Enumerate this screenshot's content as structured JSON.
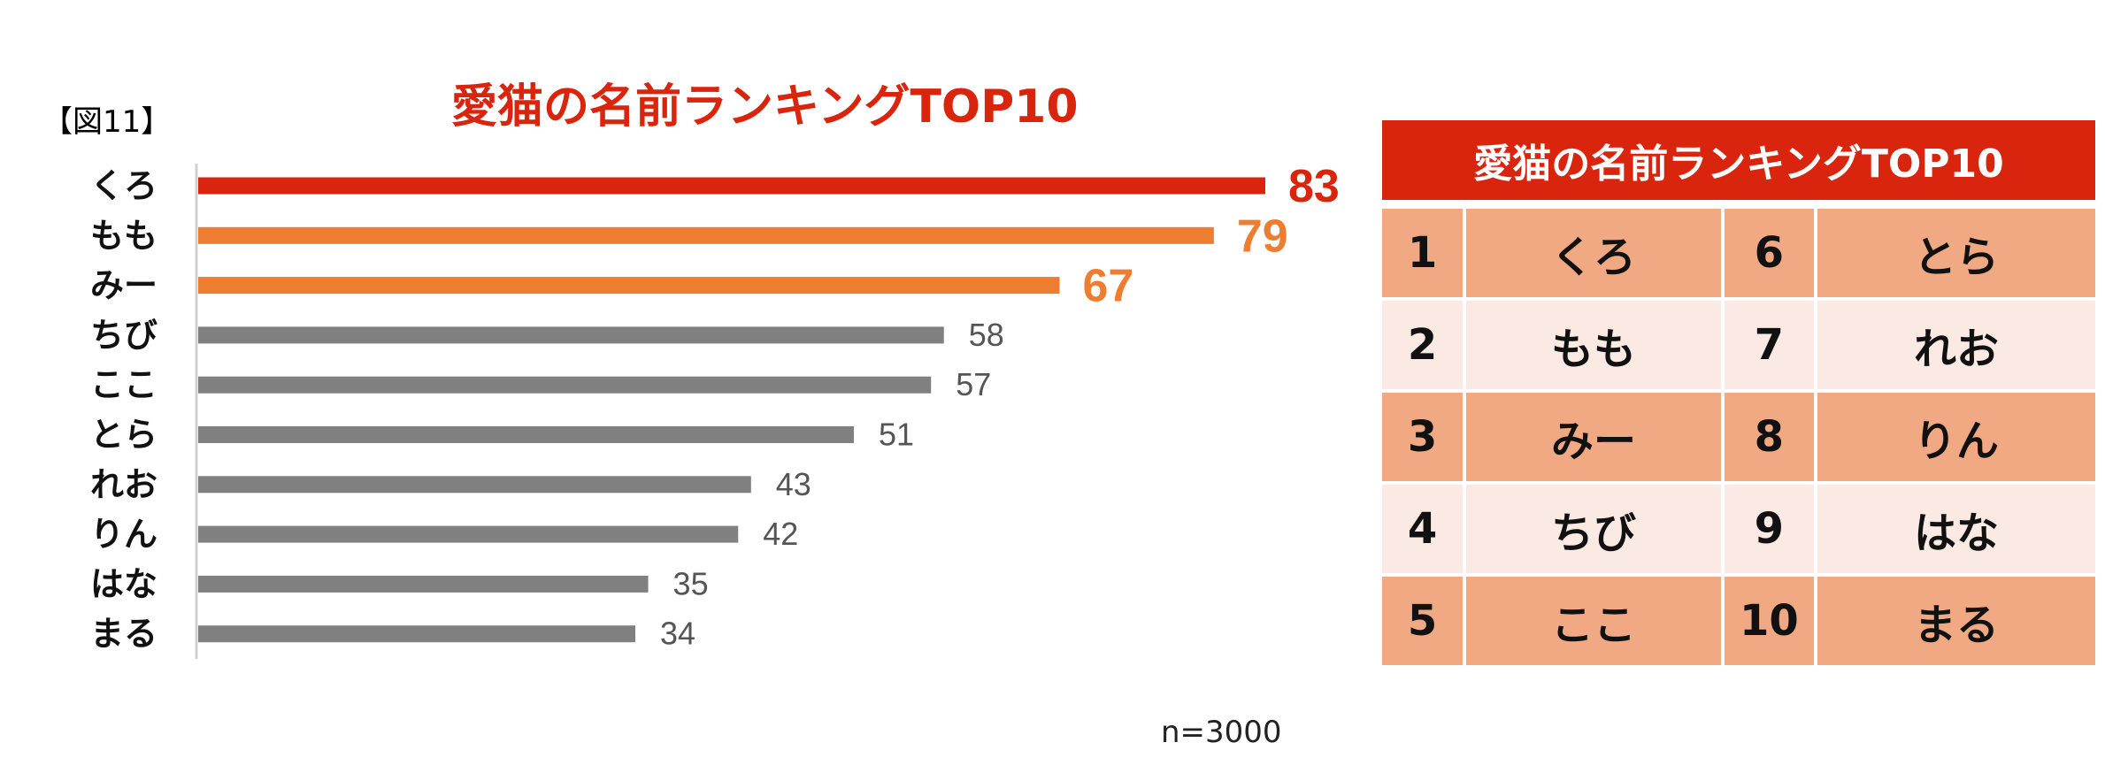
{
  "figure_label": "【図11】",
  "note": "n=3000",
  "colors": {
    "accent_red": "#d9250d",
    "orange": "#ed7d31",
    "gray": "#808080",
    "table_dark": "#f0a983",
    "table_light": "#fbe9e3"
  },
  "chart_data": {
    "type": "bar",
    "orientation": "horizontal",
    "title": "愛猫の名前ランキングTOP10",
    "categories": [
      "くろ",
      "もも",
      "みー",
      "ちび",
      "ここ",
      "とら",
      "れお",
      "りん",
      "はな",
      "まる"
    ],
    "values": [
      83,
      79,
      67,
      58,
      57,
      51,
      43,
      42,
      35,
      34
    ],
    "bar_colors": [
      "#d9250d",
      "#ed7d31",
      "#ed7d31",
      "#808080",
      "#808080",
      "#808080",
      "#808080",
      "#808080",
      "#808080",
      "#808080"
    ],
    "xlim": [
      0,
      83
    ],
    "grid": false,
    "data_labels": true
  },
  "table": {
    "title": "愛猫の名前ランキングTOP10",
    "rows": [
      {
        "rank1": "1",
        "name1": "くろ",
        "rank2": "6",
        "name2": "とら"
      },
      {
        "rank1": "2",
        "name1": "もも",
        "rank2": "7",
        "name2": "れお"
      },
      {
        "rank1": "3",
        "name1": "みー",
        "rank2": "8",
        "name2": "りん"
      },
      {
        "rank1": "4",
        "name1": "ちび",
        "rank2": "9",
        "name2": "はな"
      },
      {
        "rank1": "5",
        "name1": "ここ",
        "rank2": "10",
        "name2": "まる"
      }
    ]
  }
}
